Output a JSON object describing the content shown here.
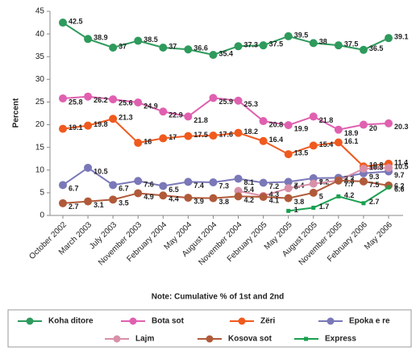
{
  "chart_data": {
    "type": "line",
    "y_label": "Percent",
    "note": "Note: Cumulative % of 1st and 2nd",
    "categories": [
      "October 2002",
      "March 2003",
      "July 2003",
      "November 2003",
      "February 2004",
      "May 2004",
      "August 2004",
      "November 2004",
      "February 2005",
      "May 2005",
      "August 2005",
      "November 2005",
      "February 2006",
      "May 2006"
    ],
    "series": [
      {
        "name": "Koha ditore",
        "color": "#2e9a5c",
        "values": [
          42.5,
          38.9,
          37,
          38.5,
          37,
          36.6,
          35.4,
          37.3,
          37.5,
          39.5,
          38,
          37.5,
          36.5,
          39.1
        ]
      },
      {
        "name": "Bota sot",
        "color": "#e060b0",
        "values": [
          25.8,
          26.2,
          25.6,
          24.9,
          22.9,
          21.8,
          25.9,
          25.3,
          20.8,
          19.9,
          21.8,
          18.9,
          20,
          20.3
        ]
      },
      {
        "name": "Zëri",
        "color": "#f05a1e",
        "values": [
          19.1,
          19.8,
          21.3,
          16,
          17,
          17.5,
          17.6,
          18.2,
          16.4,
          13.5,
          15.4,
          16.1,
          10.8,
          11.4
        ]
      },
      {
        "name": "Epoka e re",
        "color": "#7a78b8",
        "values": [
          6.7,
          10.5,
          6.7,
          7.6,
          6.5,
          7.4,
          7.3,
          8.1,
          7.2,
          7.4,
          8.2,
          8.3,
          9.3,
          9.7
        ]
      },
      {
        "name": "Lajm",
        "color": "#d890a8",
        "values": [
          null,
          null,
          null,
          null,
          null,
          null,
          null,
          5.4,
          4.3,
          6,
          7,
          7.7,
          10.3,
          10.5
        ]
      },
      {
        "name": "Kosova sot",
        "color": "#b05a3a",
        "values": [
          2.7,
          3.1,
          3.5,
          4.9,
          4.4,
          3.9,
          3.8,
          4.2,
          4.1,
          3.8,
          5,
          7.7,
          7.5,
          6.6
        ]
      },
      {
        "name": "Express",
        "color": "#1aa050",
        "values": [
          null,
          null,
          null,
          null,
          null,
          null,
          null,
          null,
          null,
          1,
          1.7,
          4.2,
          2.7,
          6.2
        ]
      }
    ],
    "ylim": [
      0,
      45
    ],
    "yticks": [
      0,
      5,
      10,
      15,
      20,
      25,
      30,
      35,
      40,
      45
    ],
    "legend": "bottom"
  }
}
